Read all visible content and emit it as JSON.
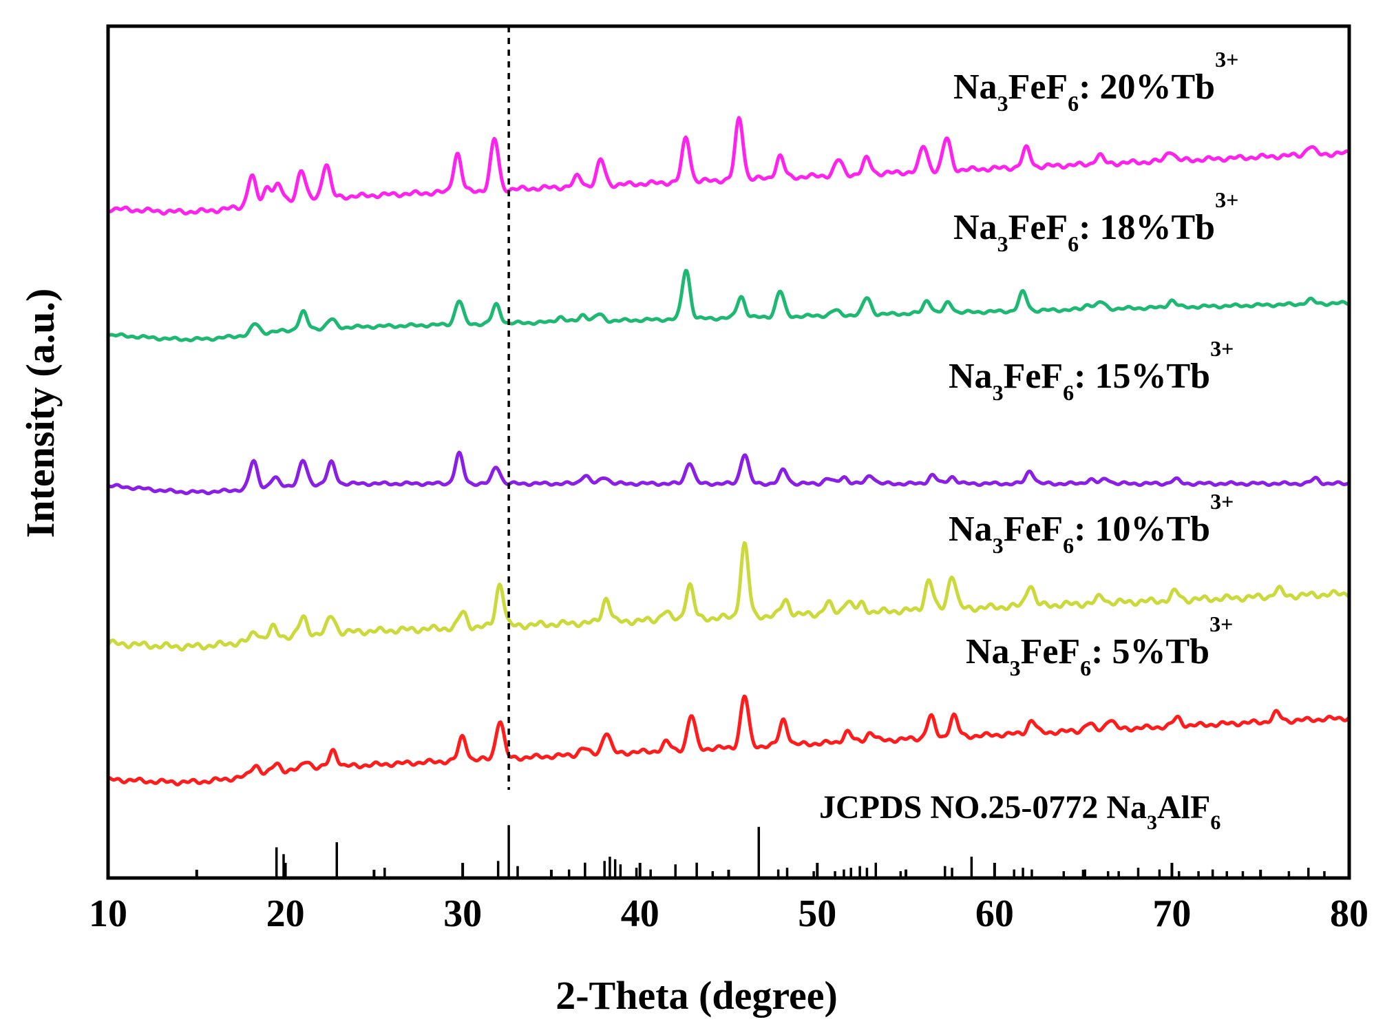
{
  "chart_data": {
    "type": "line",
    "title": "",
    "xlabel": "2-Theta (degree)",
    "ylabel": "Intensity (a.u.)",
    "xlim": [
      10,
      80
    ],
    "ylim": [
      0,
      1
    ],
    "xticks": [
      10,
      20,
      30,
      40,
      50,
      60,
      70,
      80
    ],
    "xtick_labels": [
      "10",
      "20",
      "30",
      "40",
      "50",
      "60",
      "70",
      "80"
    ],
    "reference_line_x": 32.6,
    "series": [
      {
        "name": "Na3FeF6: 20%Tb3+",
        "label_parts": [
          "Na",
          "3",
          "FeF",
          "6",
          ": 20%Tb",
          "3+"
        ],
        "color": "#ff22ee",
        "baseline": 0.788,
        "slope": 0.0009,
        "noise": 0.003,
        "peaks": [
          [
            18.1,
            0.035
          ],
          [
            19.0,
            0.02
          ],
          [
            19.6,
            0.02
          ],
          [
            20.9,
            0.035
          ],
          [
            22.3,
            0.04
          ],
          [
            29.7,
            0.045
          ],
          [
            31.8,
            0.06
          ],
          [
            36.5,
            0.012
          ],
          [
            37.8,
            0.03
          ],
          [
            42.6,
            0.052
          ],
          [
            45.6,
            0.072
          ],
          [
            47.9,
            0.025
          ],
          [
            51.2,
            0.018
          ],
          [
            52.8,
            0.018
          ],
          [
            56.0,
            0.03
          ],
          [
            57.3,
            0.038
          ],
          [
            61.8,
            0.022
          ],
          [
            65.9,
            0.01
          ],
          [
            69.9,
            0.012
          ],
          [
            77.8,
            0.01
          ]
        ]
      },
      {
        "name": "Na3FeF6: 18%Tb3+",
        "label_parts": [
          "Na",
          "3",
          "FeF",
          "6",
          ": 18%Tb",
          "3+"
        ],
        "color": "#1db872",
        "baseline": 0.64,
        "slope": 0.0005,
        "noise": 0.002,
        "peaks": [
          [
            18.3,
            0.012
          ],
          [
            21.0,
            0.02
          ],
          [
            22.6,
            0.01
          ],
          [
            29.8,
            0.028
          ],
          [
            31.9,
            0.022
          ],
          [
            35.5,
            0.006
          ],
          [
            36.8,
            0.008
          ],
          [
            37.7,
            0.008
          ],
          [
            42.6,
            0.058
          ],
          [
            45.7,
            0.025
          ],
          [
            47.9,
            0.03
          ],
          [
            51.0,
            0.006
          ],
          [
            52.8,
            0.02
          ],
          [
            56.2,
            0.015
          ],
          [
            57.4,
            0.012
          ],
          [
            61.6,
            0.022
          ],
          [
            65.3,
            0.006
          ],
          [
            66.0,
            0.008
          ],
          [
            70.0,
            0.008
          ],
          [
            77.8,
            0.005
          ]
        ]
      },
      {
        "name": "Na3FeF6: 15%Tb3+",
        "label_parts": [
          "Na",
          "3",
          "FeF",
          "6",
          ": 15%Tb",
          "3+"
        ],
        "color": "#8a1de6",
        "baseline": 0.463,
        "slope": 0.0,
        "noise": 0.002,
        "peaks": [
          [
            18.2,
            0.032
          ],
          [
            19.4,
            0.01
          ],
          [
            21.0,
            0.028
          ],
          [
            22.6,
            0.025
          ],
          [
            29.8,
            0.035
          ],
          [
            31.9,
            0.02
          ],
          [
            36.9,
            0.01
          ],
          [
            38.0,
            0.008
          ],
          [
            42.8,
            0.025
          ],
          [
            45.9,
            0.035
          ],
          [
            48.1,
            0.016
          ],
          [
            50.6,
            0.006
          ],
          [
            51.5,
            0.008
          ],
          [
            53.0,
            0.01
          ],
          [
            56.5,
            0.01
          ],
          [
            57.6,
            0.008
          ],
          [
            62.0,
            0.015
          ],
          [
            65.4,
            0.005
          ],
          [
            66.3,
            0.006
          ],
          [
            70.2,
            0.005
          ],
          [
            78.1,
            0.006
          ]
        ]
      },
      {
        "name": "Na3FeF6: 10%Tb3+",
        "label_parts": [
          "Na",
          "3",
          "FeF",
          "6",
          ": 10%Tb",
          "3+"
        ],
        "color": "#cbd93a",
        "baseline": 0.278,
        "slope": 0.0008,
        "noise": 0.004,
        "peaks": [
          [
            18.3,
            0.01
          ],
          [
            19.3,
            0.012
          ],
          [
            21.0,
            0.02
          ],
          [
            22.6,
            0.02
          ],
          [
            30.0,
            0.018
          ],
          [
            32.1,
            0.05
          ],
          [
            38.1,
            0.028
          ],
          [
            41.4,
            0.01
          ],
          [
            42.8,
            0.04
          ],
          [
            45.9,
            0.085
          ],
          [
            48.2,
            0.018
          ],
          [
            50.6,
            0.012
          ],
          [
            51.7,
            0.015
          ],
          [
            52.5,
            0.01
          ],
          [
            56.3,
            0.035
          ],
          [
            57.6,
            0.04
          ],
          [
            62.0,
            0.025
          ],
          [
            66.0,
            0.008
          ],
          [
            70.2,
            0.01
          ],
          [
            76.0,
            0.008
          ]
        ]
      },
      {
        "name": "Na3FeF6: 5%Tb3+",
        "label_parts": [
          "Na",
          "3",
          "FeF",
          "6",
          ": 5%Tb",
          "3+"
        ],
        "color": "#ff1c1c",
        "baseline": 0.118,
        "slope": 0.001,
        "noise": 0.003,
        "peaks": [
          [
            18.3,
            0.012
          ],
          [
            19.5,
            0.01
          ],
          [
            21.2,
            0.01
          ],
          [
            22.7,
            0.02
          ],
          [
            30.0,
            0.028
          ],
          [
            32.1,
            0.045
          ],
          [
            36.8,
            0.008
          ],
          [
            38.1,
            0.025
          ],
          [
            41.5,
            0.01
          ],
          [
            42.9,
            0.04
          ],
          [
            45.9,
            0.06
          ],
          [
            48.1,
            0.03
          ],
          [
            51.7,
            0.012
          ],
          [
            53.0,
            0.01
          ],
          [
            56.4,
            0.025
          ],
          [
            57.7,
            0.025
          ],
          [
            62.1,
            0.015
          ],
          [
            65.3,
            0.008
          ],
          [
            66.5,
            0.012
          ],
          [
            70.3,
            0.01
          ],
          [
            75.9,
            0.01
          ]
        ]
      }
    ],
    "reference_pattern": {
      "name": "JCPDS NO.25-0772 Na3AlF6",
      "label_parts": [
        "JCPDS NO.25-0772 Na",
        "3",
        "AlF",
        "6"
      ],
      "color": "#000000",
      "positions": [
        19.5,
        19.9,
        22.9,
        25.6,
        32.0,
        32.6,
        33.1,
        36.0,
        36.9,
        38.0,
        38.3,
        38.6,
        38.9,
        39.8,
        40.6,
        42.0,
        43.2,
        44.1,
        46.7,
        47.8,
        48.3,
        49.8,
        51.0,
        51.5,
        51.9,
        52.4,
        52.8,
        53.3,
        54.7,
        55.0,
        57.2,
        57.6,
        58.7,
        61.1,
        61.6,
        62.1,
        63.9,
        65.1,
        66.4,
        67.0,
        68.1,
        69.3,
        70.4,
        71.5,
        72.3,
        73.1,
        74.0,
        75.0,
        76.6,
        77.7,
        78.6
      ],
      "heights": [
        0.036,
        0.028,
        0.042,
        0.012,
        0.02,
        0.062,
        0.014,
        0.01,
        0.018,
        0.02,
        0.025,
        0.022,
        0.016,
        0.012,
        0.01,
        0.016,
        0.018,
        0.008,
        0.06,
        0.01,
        0.012,
        0.008,
        0.008,
        0.01,
        0.012,
        0.014,
        0.012,
        0.018,
        0.008,
        0.01,
        0.014,
        0.012,
        0.025,
        0.01,
        0.012,
        0.01,
        0.008,
        0.01,
        0.008,
        0.008,
        0.012,
        0.01,
        0.008,
        0.008,
        0.01,
        0.008,
        0.008,
        0.008,
        0.008,
        0.012,
        0.008
      ]
    }
  }
}
